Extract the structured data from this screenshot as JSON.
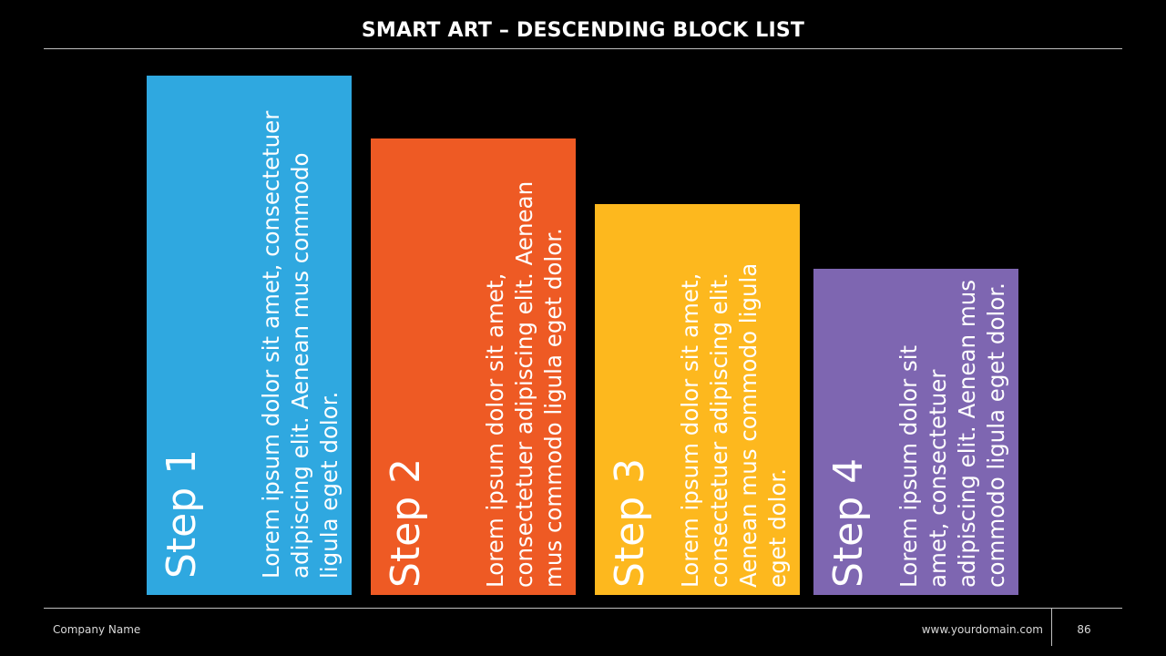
{
  "slide": {
    "title": "SMART ART – DESCENDING BLOCK LIST"
  },
  "steps": [
    {
      "label": "Step 1",
      "text": "Lorem ipsum dolor sit amet, consectetuer adipiscing elit. Aenean mus commodo ligula eget dolor.",
      "color": "#2FA8E0"
    },
    {
      "label": "Step 2",
      "text": "Lorem ipsum dolor sit amet, consectetuer adipiscing elit. Aenean mus commodo ligula eget dolor.",
      "color": "#EE5A24"
    },
    {
      "label": "Step 3",
      "text": "Lorem ipsum dolor sit amet, consectetuer adipiscing elit. Aenean mus commodo ligula eget dolor.",
      "color": "#FDB81E"
    },
    {
      "label": "Step 4",
      "text": "Lorem ipsum dolor sit amet, consectetuer adipiscing elit. Aenean mus commodo ligula eget dolor.",
      "color": "#7E66B1"
    }
  ],
  "footer": {
    "company": "Company Name",
    "domain": "www.yourdomain.com",
    "page_number": "86"
  }
}
